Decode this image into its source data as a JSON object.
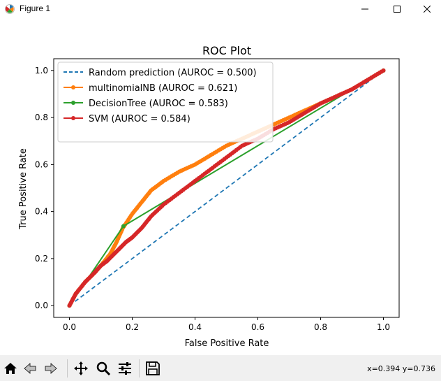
{
  "window": {
    "title": "Figure 1"
  },
  "toolbar": {
    "coords": "x=0.394 y=0.736",
    "buttons": [
      "home",
      "back",
      "forward",
      "pan",
      "zoom",
      "configure-subplots",
      "save"
    ]
  },
  "colors": {
    "random": "#1f77b4",
    "nb": "#ff7f0e",
    "tree": "#2ca02c",
    "svm": "#d62728"
  },
  "chart_data": {
    "type": "line",
    "title": "ROC Plot",
    "xlabel": "False Positive Rate",
    "ylabel": "True Positive Rate",
    "xlim": [
      -0.05,
      1.05
    ],
    "ylim": [
      -0.05,
      1.05
    ],
    "xticks": [
      "0.0",
      "0.2",
      "0.4",
      "0.6",
      "0.8",
      "1.0"
    ],
    "yticks": [
      "0.0",
      "0.2",
      "0.4",
      "0.6",
      "0.8",
      "1.0"
    ],
    "grid": false,
    "legend": "upper-left",
    "series": [
      {
        "name": "Random prediction (AUROC = 0.500)",
        "style": "dashed",
        "markers": false,
        "x": [
          0,
          1
        ],
        "y": [
          0,
          1
        ]
      },
      {
        "name": "multinomialNB (AUROC = 0.621)",
        "style": "solid",
        "markers": true,
        "x": [
          0,
          0.02,
          0.05,
          0.08,
          0.1,
          0.13,
          0.15,
          0.17,
          0.2,
          0.23,
          0.26,
          0.3,
          0.35,
          0.4,
          0.45,
          0.5,
          0.55,
          0.6,
          0.65,
          0.7,
          0.75,
          0.8,
          0.85,
          0.9,
          0.95,
          1.0
        ],
        "y": [
          0,
          0.05,
          0.1,
          0.14,
          0.17,
          0.22,
          0.27,
          0.33,
          0.39,
          0.44,
          0.49,
          0.53,
          0.57,
          0.6,
          0.64,
          0.68,
          0.71,
          0.74,
          0.77,
          0.8,
          0.83,
          0.86,
          0.89,
          0.92,
          0.96,
          1.0
        ]
      },
      {
        "name": "DecisionTree (AUROC = 0.583)",
        "style": "solid",
        "markers": true,
        "x": [
          0,
          0.172,
          1.0
        ],
        "y": [
          0,
          0.338,
          1.0
        ]
      },
      {
        "name": "SVM (AUROC = 0.584)",
        "style": "solid",
        "markers": true,
        "x": [
          0,
          0.02,
          0.05,
          0.08,
          0.1,
          0.12,
          0.15,
          0.18,
          0.2,
          0.23,
          0.26,
          0.3,
          0.35,
          0.4,
          0.45,
          0.5,
          0.55,
          0.6,
          0.65,
          0.7,
          0.75,
          0.8,
          0.85,
          0.9,
          0.95,
          1.0
        ],
        "y": [
          0,
          0.05,
          0.1,
          0.14,
          0.17,
          0.19,
          0.23,
          0.27,
          0.29,
          0.33,
          0.38,
          0.43,
          0.48,
          0.53,
          0.58,
          0.63,
          0.68,
          0.71,
          0.75,
          0.78,
          0.82,
          0.86,
          0.89,
          0.92,
          0.96,
          1.0
        ]
      }
    ]
  }
}
